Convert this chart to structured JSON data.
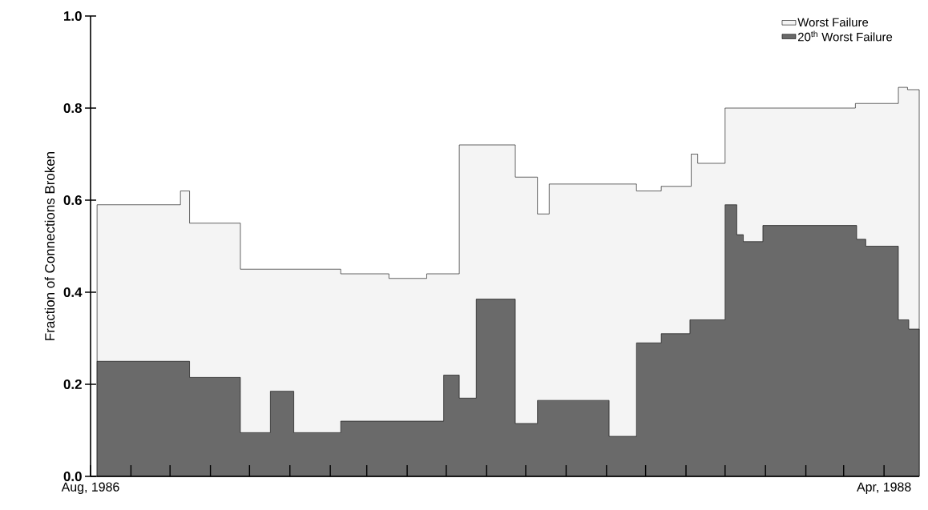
{
  "chart_data": {
    "type": "area",
    "ylabel": "Fraction of Connections Broken",
    "xlim": [
      "1986-08-01",
      "1988-04-28"
    ],
    "ylim": [
      0,
      1
    ],
    "xticks": [
      {
        "value": "1986-08",
        "label": "Aug, 1986"
      },
      {
        "value": "1986-09",
        "label": null
      },
      {
        "value": "1986-10",
        "label": null
      },
      {
        "value": "1986-11",
        "label": null
      },
      {
        "value": "1986-12",
        "label": null
      },
      {
        "value": "1987-01",
        "label": null
      },
      {
        "value": "1987-02",
        "label": null
      },
      {
        "value": "1987-03",
        "label": null
      },
      {
        "value": "1987-04",
        "label": null
      },
      {
        "value": "1987-05",
        "label": null
      },
      {
        "value": "1987-06",
        "label": null
      },
      {
        "value": "1987-07",
        "label": null
      },
      {
        "value": "1987-08",
        "label": null
      },
      {
        "value": "1987-09",
        "label": null
      },
      {
        "value": "1987-10",
        "label": null
      },
      {
        "value": "1987-11",
        "label": null
      },
      {
        "value": "1987-12",
        "label": null
      },
      {
        "value": "1988-01",
        "label": null
      },
      {
        "value": "1988-02",
        "label": null
      },
      {
        "value": "1988-03",
        "label": null
      },
      {
        "value": "1988-04",
        "label": "Apr, 1988"
      }
    ],
    "yticks": [
      {
        "value": 0,
        "label": "0.0"
      },
      {
        "value": 0.2,
        "label": "0.2"
      },
      {
        "value": 0.4,
        "label": "0.4"
      },
      {
        "value": 0.6,
        "label": "0.6"
      },
      {
        "value": 0.8,
        "label": "0.8"
      },
      {
        "value": 1,
        "label": "1.0"
      }
    ],
    "legend": "top right",
    "series": [
      {
        "name": "Worst Failure",
        "color": "#f4f4f4",
        "x": [
          "1986-08-06",
          "1986-10-09",
          "1986-10-09",
          "1986-10-16",
          "1986-10-16",
          "1986-11-24",
          "1986-11-24",
          "1987-02-09",
          "1987-02-09",
          "1987-03-18",
          "1987-03-18",
          "1987-04-16",
          "1987-04-16",
          "1987-05-11",
          "1987-05-11",
          "1987-06-23",
          "1987-06-23",
          "1987-07-10",
          "1987-07-10",
          "1987-07-19",
          "1987-07-19",
          "1987-09-24",
          "1987-09-24",
          "1987-10-13",
          "1987-10-13",
          "1987-11-05",
          "1987-11-05",
          "1987-11-10",
          "1987-11-10",
          "1987-12-01",
          "1987-12-01",
          "1988-03-10",
          "1988-03-10",
          "1988-04-12",
          "1988-04-12",
          "1988-04-19",
          "1988-04-19",
          "1988-04-28"
        ],
        "values": [
          0.59,
          0.59,
          0.62,
          0.62,
          0.55,
          0.55,
          0.45,
          0.45,
          0.44,
          0.44,
          0.43,
          0.43,
          0.44,
          0.44,
          0.72,
          0.72,
          0.65,
          0.65,
          0.57,
          0.57,
          0.635,
          0.635,
          0.62,
          0.62,
          0.63,
          0.63,
          0.7,
          0.7,
          0.68,
          0.68,
          0.8,
          0.8,
          0.81,
          0.81,
          0.845,
          0.845,
          0.84,
          0.84
        ]
      },
      {
        "name": "20$^{th}$ Worst Failure",
        "color": "#6a6a6a",
        "x": [
          "1986-08-06",
          "1986-10-16",
          "1986-10-16",
          "1986-11-24",
          "1986-11-24",
          "1986-12-17",
          "1986-12-17",
          "1987-01-04",
          "1987-01-04",
          "1987-02-09",
          "1987-02-09",
          "1987-04-29",
          "1987-04-29",
          "1987-05-11",
          "1987-05-11",
          "1987-05-24",
          "1987-05-24",
          "1987-06-23",
          "1987-06-23",
          "1987-07-10",
          "1987-07-10",
          "1987-09-03",
          "1987-09-03",
          "1987-09-24",
          "1987-09-24",
          "1987-10-13",
          "1987-10-13",
          "1987-11-04",
          "1987-11-04",
          "1987-12-01",
          "1987-12-01",
          "1987-12-10",
          "1987-12-10",
          "1987-12-15",
          "1987-12-15",
          "1987-12-30",
          "1987-12-30",
          "1988-03-11",
          "1988-03-11",
          "1988-03-18",
          "1988-03-18",
          "1988-04-12",
          "1988-04-12",
          "1988-04-20",
          "1988-04-20",
          "1988-04-28"
        ],
        "values": [
          0.25,
          0.25,
          0.215,
          0.215,
          0.095,
          0.095,
          0.185,
          0.185,
          0.095,
          0.095,
          0.12,
          0.12,
          0.22,
          0.22,
          0.17,
          0.17,
          0.385,
          0.385,
          0.115,
          0.115,
          0.165,
          0.165,
          0.087,
          0.087,
          0.29,
          0.29,
          0.31,
          0.31,
          0.34,
          0.34,
          0.59,
          0.59,
          0.525,
          0.525,
          0.51,
          0.51,
          0.545,
          0.545,
          0.515,
          0.515,
          0.5,
          0.5,
          0.34,
          0.34,
          0.32,
          0.32
        ]
      }
    ]
  }
}
